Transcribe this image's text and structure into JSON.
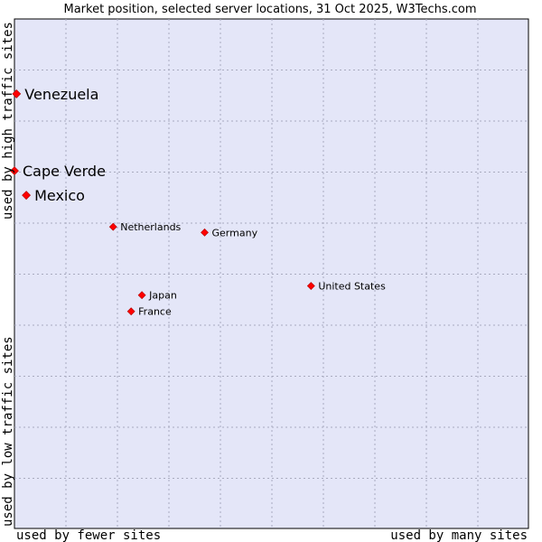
{
  "chart_data": {
    "type": "scatter",
    "title": "Market position, selected server locations, 31 Oct 2025, W3Techs.com",
    "xlabel_left": "used by fewer sites",
    "xlabel_right": "used by many sites",
    "ylabel_bottom": "used by low traffic sites",
    "ylabel_top": "used by high traffic sites",
    "xlim": [
      0,
      100
    ],
    "ylim": [
      0,
      100
    ],
    "grid": true,
    "point_color": "#ff0000",
    "plot_background": "#e4e6f8",
    "points": [
      {
        "name": "Venezuela",
        "x": 0.4,
        "y": 85.3,
        "size": "large"
      },
      {
        "name": "Cape Verde",
        "x": 0.0,
        "y": 70.2,
        "size": "large"
      },
      {
        "name": "Mexico",
        "x": 2.3,
        "y": 65.4,
        "size": "large"
      },
      {
        "name": "Netherlands",
        "x": 19.2,
        "y": 59.2,
        "size": "small"
      },
      {
        "name": "Germany",
        "x": 37.0,
        "y": 58.1,
        "size": "small"
      },
      {
        "name": "United States",
        "x": 57.7,
        "y": 47.6,
        "size": "small"
      },
      {
        "name": "Japan",
        "x": 24.8,
        "y": 45.8,
        "size": "small"
      },
      {
        "name": "France",
        "x": 22.7,
        "y": 42.6,
        "size": "small"
      }
    ]
  }
}
